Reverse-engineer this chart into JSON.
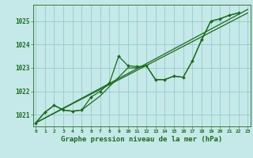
{
  "background_color": "#c5e8e8",
  "grid_color": "#88c8c8",
  "line_color": "#1a6b1a",
  "title": "Graphe pression niveau de la mer (hPa)",
  "title_fontsize": 6.5,
  "ylabel_ticks": [
    1021,
    1022,
    1023,
    1024,
    1025
  ],
  "ytick_fontsize": 5.5,
  "xtick_fontsize": 4.5,
  "xlim": [
    -0.3,
    23.3
  ],
  "ylim": [
    1020.5,
    1025.7
  ],
  "lines": [
    {
      "x": [
        0,
        1,
        2,
        3,
        4,
        5,
        6,
        7,
        8,
        9,
        10,
        11,
        12,
        13,
        14,
        15,
        16,
        17,
        18,
        19,
        20,
        21,
        22,
        23
      ],
      "y": [
        1020.65,
        1021.1,
        1021.4,
        1021.2,
        1021.15,
        1021.2,
        1021.75,
        1022.0,
        1022.35,
        1023.5,
        1023.1,
        1023.05,
        1023.1,
        1022.5,
        1022.5,
        1022.65,
        1022.6,
        1023.3,
        1024.2,
        1025.0,
        1025.1,
        1025.25,
        1025.35,
        null
      ],
      "marker": true
    },
    {
      "x": [
        0,
        1,
        2,
        3,
        4,
        5,
        6,
        7,
        8,
        9,
        10,
        11,
        12,
        13,
        14,
        15,
        16,
        17,
        18,
        19,
        20,
        21,
        22,
        23
      ],
      "y": [
        1020.65,
        1021.1,
        1021.4,
        1021.2,
        1021.15,
        1021.2,
        1021.5,
        1021.8,
        1022.2,
        1022.6,
        1023.0,
        1023.0,
        1023.1,
        1022.5,
        1022.5,
        1022.65,
        1022.6,
        1023.3,
        1024.2,
        1025.0,
        1025.1,
        1025.25,
        1025.35,
        null
      ],
      "marker": false
    },
    {
      "x": [
        0,
        23
      ],
      "y": [
        1020.65,
        1025.35
      ],
      "marker": false
    },
    {
      "x": [
        0,
        23
      ],
      "y": [
        1020.65,
        1025.5
      ],
      "marker": false
    }
  ],
  "marker": "D",
  "marker_size": 2.0,
  "linewidth": 0.9
}
